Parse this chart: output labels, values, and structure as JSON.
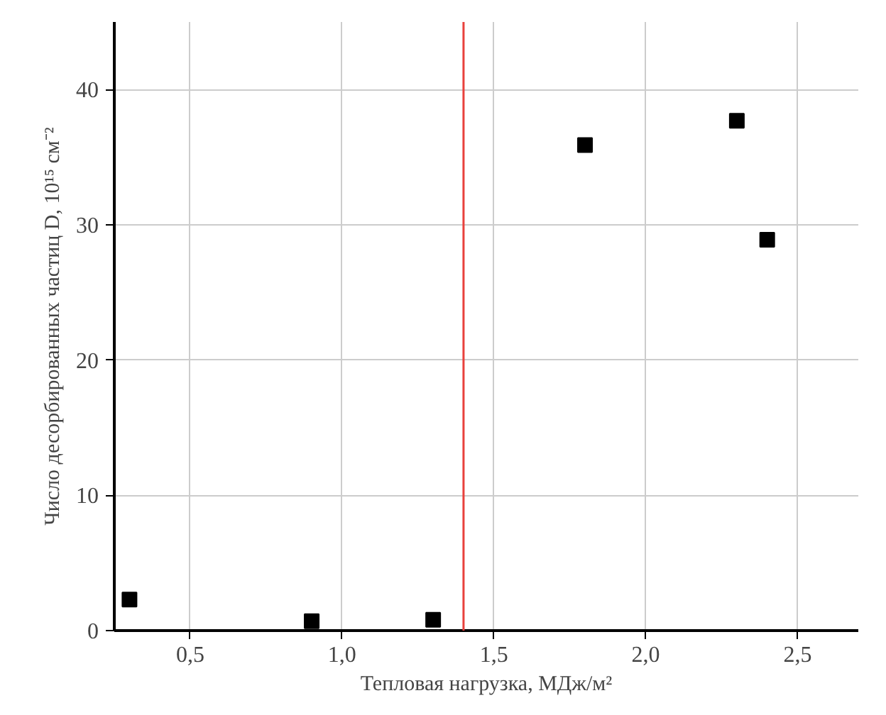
{
  "chart_data": {
    "type": "scatter",
    "xlabel": "Тепловая нагрузка, МДж/м²",
    "ylabel": "Число десорбированных частиц D, 10¹⁵ см⁻²",
    "x": [
      0.3,
      0.9,
      1.3,
      1.8,
      2.3,
      2.4
    ],
    "series": [
      {
        "color": "#000000",
        "values": [
          2.3,
          0.7,
          0.8,
          35.9,
          37.7,
          28.9
        ]
      }
    ],
    "xlim": [
      0.25,
      2.7
    ],
    "ylim": [
      0,
      45
    ],
    "xticks": [
      {
        "value": 0.5,
        "label": "0,5"
      },
      {
        "value": 1.0,
        "label": "1,0"
      },
      {
        "value": 1.5,
        "label": "1,5"
      },
      {
        "value": 2.0,
        "label": "2,0"
      },
      {
        "value": 2.5,
        "label": "2,5"
      }
    ],
    "yticks": [
      0,
      10,
      20,
      30,
      40
    ],
    "ref_lines": [
      {
        "axis": "x",
        "value": 1.4,
        "color": "#e8413c"
      }
    ],
    "grid": true,
    "marker": "square"
  }
}
